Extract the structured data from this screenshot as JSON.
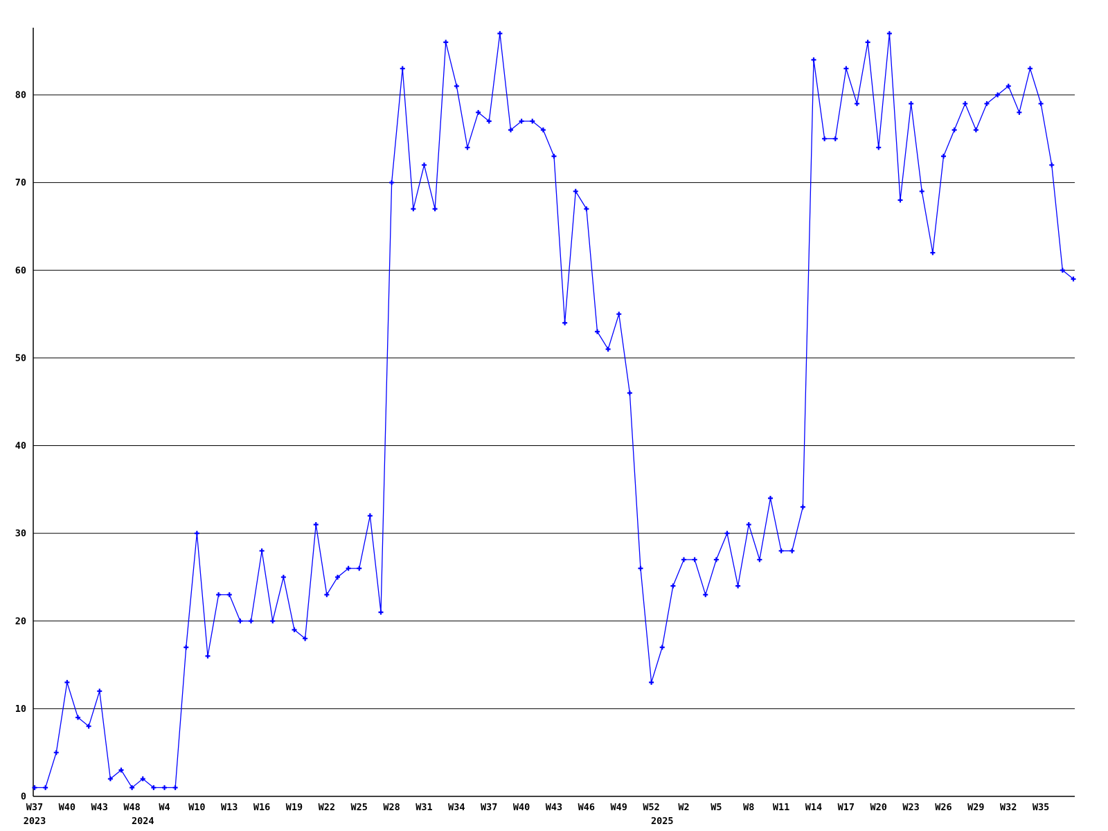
{
  "chart_data": {
    "type": "line",
    "title": "",
    "xlabel": "",
    "ylabel": "",
    "background_color": "#ffffff",
    "line_color": "#0000ff",
    "marker_color": "#0000ff",
    "marker_style": "plus",
    "grid": true,
    "grid_color": "#000000",
    "axis_color": "#000000",
    "text_color": "#000000",
    "legend_position": "none",
    "y_ticks": [
      0,
      10,
      20,
      30,
      40,
      50,
      60,
      70,
      80
    ],
    "ylim": [
      0,
      87.5
    ],
    "x_tick_every": 3,
    "x_tick_labels": [
      "W37",
      "W40",
      "W43",
      "W48",
      "W4",
      "W10",
      "W13",
      "W16",
      "W19",
      "W22",
      "W25",
      "W28",
      "W31",
      "W34",
      "W37",
      "W40",
      "W43",
      "W46",
      "W49",
      "W52",
      "W2",
      "W5",
      "W8",
      "W11",
      "W14",
      "W17",
      "W20",
      "W23",
      "W26",
      "W29",
      "W32",
      "W35"
    ],
    "year_labels": [
      {
        "label": "2023",
        "point_index": 0
      },
      {
        "label": "2024",
        "point_index": 10
      },
      {
        "label": "2025",
        "point_index": 58
      }
    ],
    "values": [
      1,
      1,
      5,
      13,
      9,
      8,
      12,
      2,
      3,
      1,
      2,
      1,
      1,
      1,
      17,
      30,
      16,
      23,
      23,
      20,
      20,
      28,
      20,
      25,
      19,
      18,
      31,
      23,
      25,
      26,
      26,
      32,
      21,
      70,
      83,
      67,
      72,
      67,
      86,
      81,
      74,
      78,
      77,
      87,
      76,
      77,
      77,
      76,
      73,
      54,
      69,
      67,
      53,
      51,
      55,
      46,
      26,
      13,
      17,
      24,
      27,
      27,
      23,
      27,
      30,
      24,
      31,
      27,
      34,
      28,
      28,
      33,
      84,
      75,
      75,
      83,
      79,
      86,
      74,
      87,
      68,
      79,
      69,
      62,
      73,
      76,
      79,
      76,
      79,
      80,
      81,
      78,
      83,
      79,
      72,
      60,
      59
    ]
  }
}
